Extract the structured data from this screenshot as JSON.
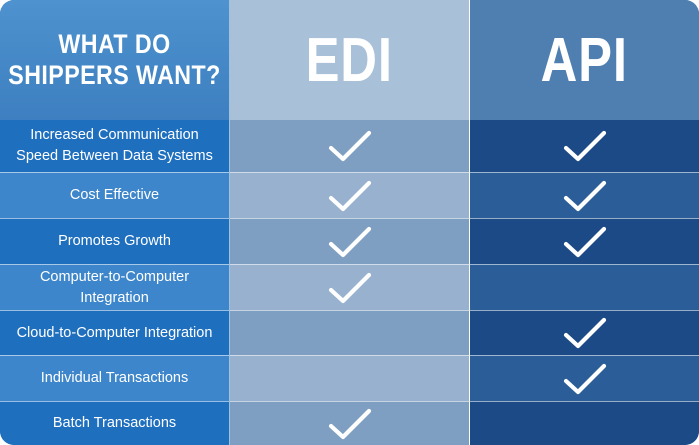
{
  "header": {
    "title_line1": "WHAT DO",
    "title_line2": "SHIPPERS WANT?",
    "col_edi": "EDI",
    "col_api": "API"
  },
  "rows": [
    {
      "line1": "Increased Communication",
      "line2": "Speed Between Data Systems",
      "edi": true,
      "api": true
    },
    {
      "line1": "Cost Effective",
      "line2": "",
      "edi": true,
      "api": true
    },
    {
      "line1": "Promotes Growth",
      "line2": "",
      "edi": true,
      "api": true
    },
    {
      "line1": "Computer-to-Computer Integration",
      "line2": "",
      "edi": true,
      "api": false
    },
    {
      "line1": "Cloud-to-Computer Integration",
      "line2": "",
      "edi": false,
      "api": true
    },
    {
      "line1": "Individual Transactions",
      "line2": "",
      "edi": false,
      "api": true
    },
    {
      "line1": "Batch Transactions",
      "line2": "",
      "edi": true,
      "api": false
    }
  ],
  "icons": {
    "check": "checkmark-icon"
  },
  "colors": {
    "criteria_dark": "#1f6fbf",
    "criteria_light": "#3d86cb",
    "edi_header": "#a9c0d9",
    "api_header": "#4f7fb1",
    "api_dark": "#1b4a86",
    "check": "#ffffff"
  }
}
